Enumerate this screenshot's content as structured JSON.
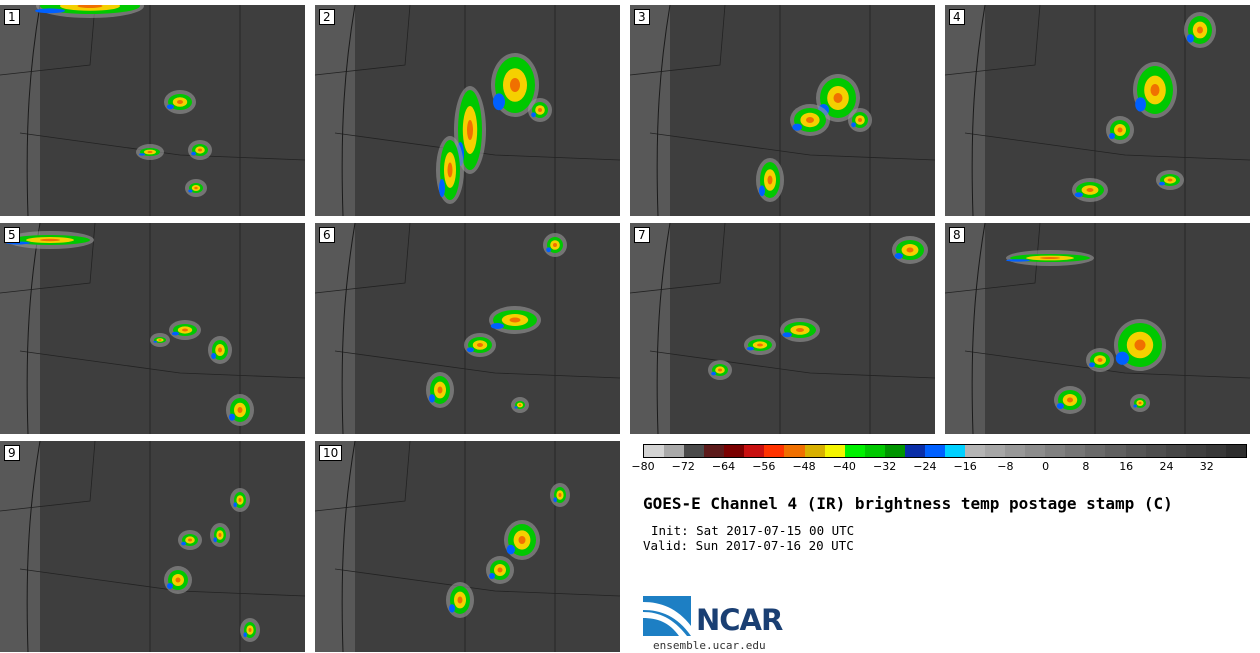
{
  "panels": [
    {
      "label": "1"
    },
    {
      "label": "2"
    },
    {
      "label": "3"
    },
    {
      "label": "4"
    },
    {
      "label": "5"
    },
    {
      "label": "6"
    },
    {
      "label": "7"
    },
    {
      "label": "8"
    },
    {
      "label": "9"
    },
    {
      "label": "10"
    }
  ],
  "colorbar": {
    "colors": [
      "#d3d3d3",
      "#a9a9a9",
      "#4a4a4a",
      "#5c1a1a",
      "#7a0000",
      "#c81010",
      "#ff3300",
      "#f07000",
      "#d8b000",
      "#f5f500",
      "#00f000",
      "#00c800",
      "#009500",
      "#0a2ea8",
      "#0060ff",
      "#00d0ff",
      "#b4b4b4",
      "#a6a6a6",
      "#989898",
      "#8c8c8c",
      "#808080",
      "#757575",
      "#6a6a6a",
      "#606060",
      "#565656",
      "#4e4e4e",
      "#464646",
      "#3f3f3f",
      "#383838",
      "#2e2e2e"
    ],
    "tick_labels": [
      "−80",
      "−72",
      "−64",
      "−56",
      "−48",
      "−40",
      "−32",
      "−24",
      "−16",
      "−8",
      "0",
      "8",
      "16",
      "24",
      "32"
    ]
  },
  "title": "GOES-E Channel 4 (IR) brightness temp postage stamp (C)",
  "init": "Init: Sat 2017-07-15 00 UTC",
  "valid": "Valid: Sun 2017-07-16 20 UTC",
  "logo": {
    "text": "NCAR",
    "url": "ensemble.ucar.edu",
    "color": "#1a3f73"
  }
}
